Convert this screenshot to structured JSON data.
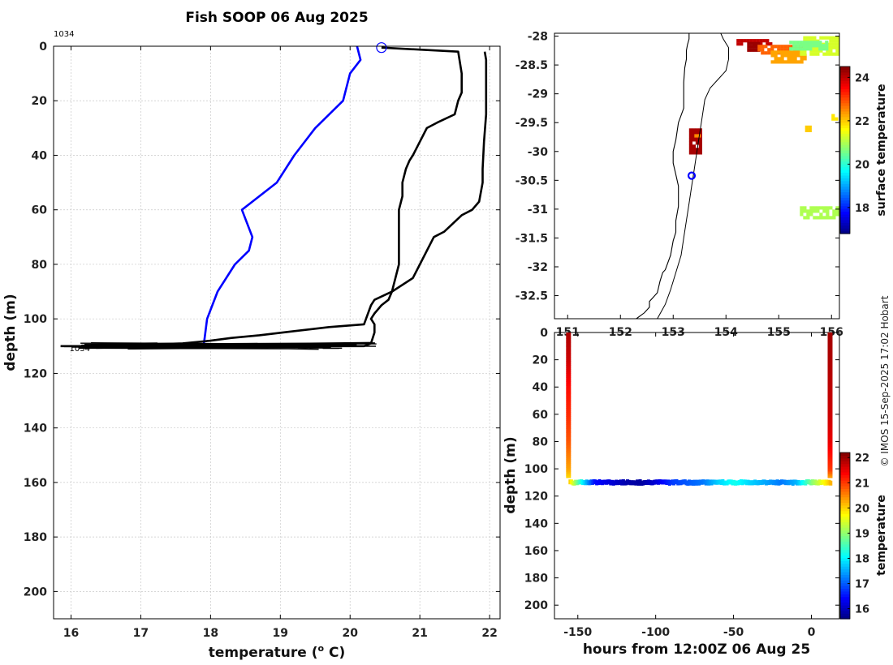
{
  "figure": {
    "title": "Fish SOOP 06 Aug 2025",
    "credit": "© IMOS 15-Sep-2025 17:02 Hobart"
  },
  "chart_data": [
    {
      "id": "profile",
      "type": "line",
      "xlabel": "temperature (",
      "xlabel_sup": "o",
      "xlabel_end": " C)",
      "ylabel": "depth (m)",
      "xlim": [
        15.75,
        22.15
      ],
      "ylim": [
        0,
        210
      ],
      "y_reversed": true,
      "xticks": [
        16,
        17,
        18,
        19,
        20,
        21,
        22
      ],
      "yticks": [
        0,
        20,
        40,
        60,
        80,
        100,
        120,
        140,
        160,
        180,
        200
      ],
      "grid": true,
      "annotations": [
        {
          "text": "1034",
          "x": 15.75,
          "y": 0
        },
        {
          "text": "1034",
          "x": 16.0,
          "y": 110
        }
      ],
      "marker": {
        "shape": "circle",
        "color": "#0000ff",
        "x": 20.45,
        "y": 0.5
      },
      "series": [
        {
          "color": "#0000ff",
          "x": [
            20.1,
            20.15,
            20.0,
            19.9,
            19.5,
            19.2,
            18.95,
            18.45,
            18.6,
            18.55,
            18.35,
            18.1,
            17.95,
            17.9
          ],
          "y": [
            0,
            5,
            10,
            20,
            30,
            40,
            50,
            60,
            70,
            75,
            80,
            90,
            100,
            110
          ]
        },
        {
          "color": "#000000",
          "x": [
            20.45,
            21.55,
            21.6,
            21.6,
            21.55,
            21.5,
            21.25,
            21.1,
            21.0,
            20.9,
            20.85,
            20.8,
            20.75,
            20.75,
            20.7,
            20.7,
            20.7,
            20.65,
            20.6,
            20.55,
            20.45,
            20.35,
            20.3,
            20.35,
            20.35,
            20.3,
            20.2,
            19.0,
            18.0,
            17.0,
            16.5,
            16.0,
            15.9
          ],
          "y": [
            0.5,
            2,
            10,
            17,
            20,
            25,
            28,
            30,
            35,
            40,
            42,
            45,
            50,
            55,
            60,
            70,
            80,
            85,
            90,
            93,
            95,
            98,
            100,
            102,
            105,
            109,
            110,
            110,
            110,
            110,
            110,
            110,
            110
          ]
        },
        {
          "color": "#000000",
          "x": [
            15.85,
            16.5,
            17.0,
            17.6,
            18.0,
            18.3,
            18.7,
            19.2,
            19.7,
            20.2,
            20.3,
            20.35,
            20.6,
            20.9,
            21.0,
            21.2,
            21.35,
            21.6,
            21.75,
            21.85,
            21.9,
            21.9,
            21.92,
            21.95,
            21.95,
            21.95,
            21.93
          ],
          "y": [
            110,
            110,
            109.5,
            109,
            108,
            107,
            106,
            104.5,
            103,
            102,
            95,
            93,
            90,
            85,
            80,
            70,
            68,
            62,
            60,
            57,
            50,
            45,
            35,
            25,
            15,
            5,
            2
          ]
        }
      ]
    },
    {
      "id": "map",
      "type": "heatmap",
      "colorbar_label": "surface temperature",
      "colorbar_ticks": [
        18,
        20,
        22,
        24
      ],
      "colorbar_range": [
        16.8,
        24.5
      ],
      "xlim": [
        150.75,
        156.15
      ],
      "ylim": [
        -32.9,
        -27.95
      ],
      "xticks": [
        151,
        152,
        153,
        154,
        155,
        156
      ],
      "xtick_labels": [
        "151",
        "152",
        "153",
        "154",
        "155",
        "156"
      ],
      "yticks": [
        -28,
        -28.5,
        -29,
        -29.5,
        -30,
        -30.5,
        -31,
        -31.5,
        -32,
        -32.5
      ],
      "ytick_labels": [
        "-28",
        "-28.5",
        "-29",
        "-29.5",
        "-30",
        "-30.5",
        "-31",
        "-31.5",
        "-32",
        "-32.5"
      ],
      "marker": {
        "shape": "circle",
        "color": "#0000ff",
        "lon": 153.35,
        "lat": -30.42
      },
      "sst_patches": [
        {
          "lon": [
            154.2,
            154.85
          ],
          "lat": [
            -28.05,
            -28.15
          ],
          "temp": 24.0
        },
        {
          "lon": [
            154.4,
            154.6
          ],
          "lat": [
            -28.1,
            -28.25
          ],
          "temp": 24.3
        },
        {
          "lon": [
            154.6,
            155.4
          ],
          "lat": [
            -28.15,
            -28.3
          ],
          "temp": 22.8
        },
        {
          "lon": [
            154.85,
            155.5
          ],
          "lat": [
            -28.25,
            -28.45
          ],
          "temp": 22.3
        },
        {
          "lon": [
            155.4,
            156.1
          ],
          "lat": [
            -28.0,
            -28.3
          ],
          "temp": 21.3
        },
        {
          "lon": [
            155.2,
            155.9
          ],
          "lat": [
            -28.08,
            -28.22
          ],
          "temp": 20.6
        },
        {
          "lon": [
            156.0,
            156.1
          ],
          "lat": [
            -29.35,
            -29.45
          ],
          "temp": 21.8
        },
        {
          "lon": [
            155.5,
            155.58
          ],
          "lat": [
            -29.55,
            -29.62
          ],
          "temp": 22.0
        },
        {
          "lon": [
            153.3,
            153.5
          ],
          "lat": [
            -29.6,
            -30.05
          ],
          "temp": 24.2
        },
        {
          "lon": [
            153.4,
            153.5
          ],
          "lat": [
            -29.7,
            -29.78
          ],
          "temp": 22.5
        },
        {
          "lon": [
            155.4,
            156.1
          ],
          "lat": [
            -30.95,
            -31.15
          ],
          "temp": 21.0
        }
      ],
      "coastline": {
        "lon": [
          152.3,
          152.45,
          152.55,
          152.55,
          152.7,
          152.75,
          152.8,
          152.85,
          152.95,
          153.0,
          153.05,
          153.05,
          153.1,
          153.1,
          153.1,
          153.05,
          153.0,
          153.0,
          153.05,
          153.1,
          153.2,
          153.2,
          153.2,
          153.22,
          153.25,
          153.25,
          153.27,
          153.3,
          153.3
        ],
        "lat": [
          -32.9,
          -32.8,
          -32.7,
          -32.6,
          -32.45,
          -32.25,
          -32.1,
          -32.05,
          -31.8,
          -31.55,
          -31.4,
          -31.2,
          -30.95,
          -30.8,
          -30.6,
          -30.4,
          -30.2,
          -30.0,
          -29.8,
          -29.5,
          -29.25,
          -29.0,
          -28.8,
          -28.55,
          -28.4,
          -28.25,
          -28.15,
          -28.05,
          -27.95
        ]
      },
      "shelf_edge": {
        "lon": [
          152.7,
          152.85,
          152.95,
          153.05,
          153.15,
          153.2,
          153.25,
          153.3,
          153.35,
          153.4,
          153.45,
          153.5,
          153.55,
          153.6,
          153.7,
          153.85,
          154.0,
          154.05,
          154.05,
          153.95,
          153.9
        ],
        "lat": [
          -32.9,
          -32.65,
          -32.4,
          -32.1,
          -31.8,
          -31.5,
          -31.2,
          -30.9,
          -30.6,
          -30.3,
          -30.0,
          -29.7,
          -29.4,
          -29.1,
          -28.9,
          -28.75,
          -28.6,
          -28.4,
          -28.2,
          -28.05,
          -27.95
        ]
      }
    },
    {
      "id": "section",
      "type": "scatter",
      "xlabel": "hours from 12:00Z 06 Aug 25",
      "ylabel": "depth (m)",
      "xlim": [
        -165,
        18
      ],
      "ylim": [
        0,
        210
      ],
      "y_reversed": true,
      "xticks": [
        -150,
        -100,
        -50,
        0
      ],
      "yticks": [
        0,
        20,
        40,
        60,
        80,
        100,
        120,
        140,
        160,
        180,
        200
      ],
      "colorbar_label": "temperature",
      "colorbar_ticks": [
        16,
        17,
        18,
        19,
        20,
        21,
        22
      ],
      "colorbar_range": [
        15.6,
        22.2
      ],
      "profiles": [
        {
          "hours": -156,
          "depth": [
            0,
            20,
            40,
            60,
            80,
            100,
            105
          ],
          "temp": [
            21.9,
            21.7,
            21.3,
            21.1,
            20.8,
            20.3,
            20.0
          ]
        },
        {
          "hours": 12,
          "depth": [
            0,
            20,
            40,
            60,
            80,
            100,
            105
          ],
          "temp": [
            21.95,
            21.9,
            21.8,
            21.7,
            21.5,
            21.0,
            20.4
          ]
        }
      ],
      "bottom_track": {
        "depth": 110,
        "hours": [
          -156,
          -150,
          -145,
          -140,
          -130,
          -120,
          -110,
          -100,
          -90,
          -80,
          -70,
          -60,
          -50,
          -40,
          -30,
          -20,
          -10,
          0,
          5,
          10,
          12
        ],
        "temp": [
          20.0,
          18.5,
          17.5,
          16.5,
          16.2,
          15.9,
          15.8,
          16.2,
          16.8,
          17.0,
          17.2,
          17.8,
          18.2,
          17.8,
          17.5,
          17.2,
          17.6,
          19.0,
          19.5,
          20.0,
          20.3
        ]
      }
    }
  ]
}
